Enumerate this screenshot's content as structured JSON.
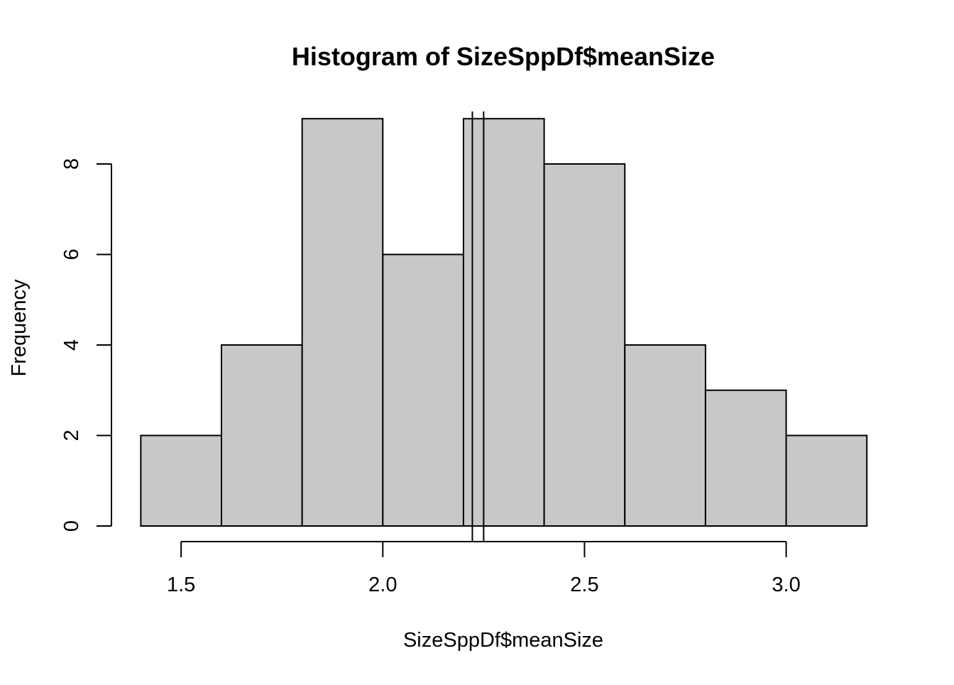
{
  "chart_data": {
    "type": "bar",
    "title": "Histogram of SizeSppDf$meanSize",
    "xlabel": "SizeSppDf$meanSize",
    "ylabel": "Frequency",
    "bins": [
      {
        "from": 1.4,
        "to": 1.6,
        "count": 2
      },
      {
        "from": 1.6,
        "to": 1.8,
        "count": 4
      },
      {
        "from": 1.8,
        "to": 2.0,
        "count": 9
      },
      {
        "from": 2.0,
        "to": 2.2,
        "count": 6
      },
      {
        "from": 2.2,
        "to": 2.4,
        "count": 9
      },
      {
        "from": 2.4,
        "to": 2.6,
        "count": 8
      },
      {
        "from": 2.6,
        "to": 2.8,
        "count": 4
      },
      {
        "from": 2.8,
        "to": 3.0,
        "count": 3
      },
      {
        "from": 3.0,
        "to": 3.2,
        "count": 2
      }
    ],
    "x_ticks": [
      {
        "value": 1.5,
        "label": "1.5"
      },
      {
        "value": 2.0,
        "label": "2.0"
      },
      {
        "value": 2.5,
        "label": "2.5"
      },
      {
        "value": 3.0,
        "label": "3.0"
      }
    ],
    "y_ticks": [
      {
        "value": 0,
        "label": "0"
      },
      {
        "value": 2,
        "label": "2"
      },
      {
        "value": 4,
        "label": "4"
      },
      {
        "value": 6,
        "label": "6"
      },
      {
        "value": 8,
        "label": "8"
      }
    ],
    "vertical_lines": [
      2.222,
      2.25
    ],
    "xlim": [
      1.329,
      3.27
    ],
    "ylim": [
      0,
      9.27
    ],
    "bar_fill": "#c8c8c8",
    "bar_stroke": "#000000",
    "grid": false
  }
}
